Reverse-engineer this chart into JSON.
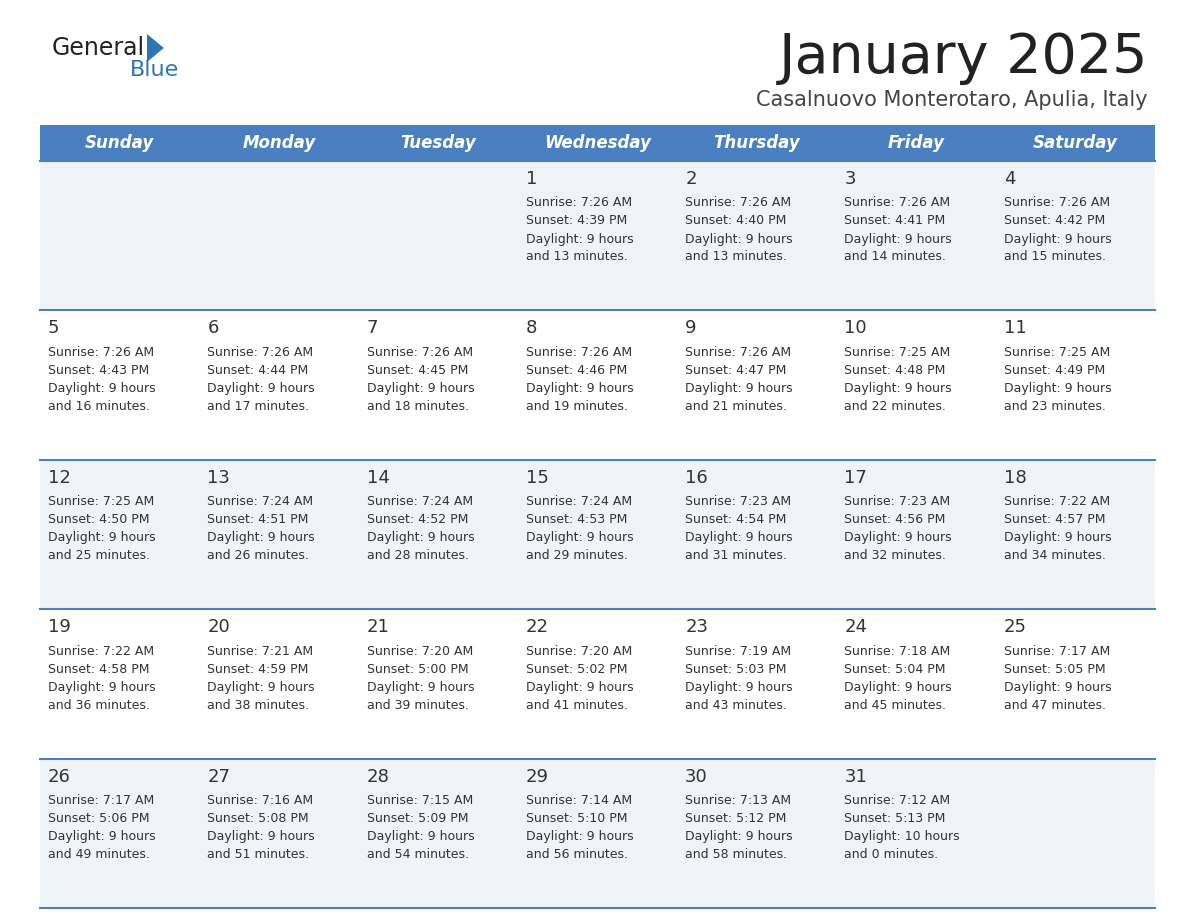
{
  "title": "January 2025",
  "subtitle": "Casalnuovo Monterotaro, Apulia, Italy",
  "days_of_week": [
    "Sunday",
    "Monday",
    "Tuesday",
    "Wednesday",
    "Thursday",
    "Friday",
    "Saturday"
  ],
  "header_bg": "#4a7fc1",
  "header_text": "#ffffff",
  "row_bg_light": "#f0f4f8",
  "row_bg_white": "#ffffff",
  "cell_text": "#333333",
  "title_color": "#222222",
  "subtitle_color": "#444444",
  "divider_color": "#4a7fc1",
  "logo_general_color": "#222222",
  "logo_blue_color": "#2e75b6",
  "calendar_data": [
    [
      {
        "day": "",
        "sunrise": "",
        "sunset": "",
        "daylight": ""
      },
      {
        "day": "",
        "sunrise": "",
        "sunset": "",
        "daylight": ""
      },
      {
        "day": "",
        "sunrise": "",
        "sunset": "",
        "daylight": ""
      },
      {
        "day": "1",
        "sunrise": "7:26 AM",
        "sunset": "4:39 PM",
        "daylight": "9 hours and 13 minutes."
      },
      {
        "day": "2",
        "sunrise": "7:26 AM",
        "sunset": "4:40 PM",
        "daylight": "9 hours and 13 minutes."
      },
      {
        "day": "3",
        "sunrise": "7:26 AM",
        "sunset": "4:41 PM",
        "daylight": "9 hours and 14 minutes."
      },
      {
        "day": "4",
        "sunrise": "7:26 AM",
        "sunset": "4:42 PM",
        "daylight": "9 hours and 15 minutes."
      }
    ],
    [
      {
        "day": "5",
        "sunrise": "7:26 AM",
        "sunset": "4:43 PM",
        "daylight": "9 hours and 16 minutes."
      },
      {
        "day": "6",
        "sunrise": "7:26 AM",
        "sunset": "4:44 PM",
        "daylight": "9 hours and 17 minutes."
      },
      {
        "day": "7",
        "sunrise": "7:26 AM",
        "sunset": "4:45 PM",
        "daylight": "9 hours and 18 minutes."
      },
      {
        "day": "8",
        "sunrise": "7:26 AM",
        "sunset": "4:46 PM",
        "daylight": "9 hours and 19 minutes."
      },
      {
        "day": "9",
        "sunrise": "7:26 AM",
        "sunset": "4:47 PM",
        "daylight": "9 hours and 21 minutes."
      },
      {
        "day": "10",
        "sunrise": "7:25 AM",
        "sunset": "4:48 PM",
        "daylight": "9 hours and 22 minutes."
      },
      {
        "day": "11",
        "sunrise": "7:25 AM",
        "sunset": "4:49 PM",
        "daylight": "9 hours and 23 minutes."
      }
    ],
    [
      {
        "day": "12",
        "sunrise": "7:25 AM",
        "sunset": "4:50 PM",
        "daylight": "9 hours and 25 minutes."
      },
      {
        "day": "13",
        "sunrise": "7:24 AM",
        "sunset": "4:51 PM",
        "daylight": "9 hours and 26 minutes."
      },
      {
        "day": "14",
        "sunrise": "7:24 AM",
        "sunset": "4:52 PM",
        "daylight": "9 hours and 28 minutes."
      },
      {
        "day": "15",
        "sunrise": "7:24 AM",
        "sunset": "4:53 PM",
        "daylight": "9 hours and 29 minutes."
      },
      {
        "day": "16",
        "sunrise": "7:23 AM",
        "sunset": "4:54 PM",
        "daylight": "9 hours and 31 minutes."
      },
      {
        "day": "17",
        "sunrise": "7:23 AM",
        "sunset": "4:56 PM",
        "daylight": "9 hours and 32 minutes."
      },
      {
        "day": "18",
        "sunrise": "7:22 AM",
        "sunset": "4:57 PM",
        "daylight": "9 hours and 34 minutes."
      }
    ],
    [
      {
        "day": "19",
        "sunrise": "7:22 AM",
        "sunset": "4:58 PM",
        "daylight": "9 hours and 36 minutes."
      },
      {
        "day": "20",
        "sunrise": "7:21 AM",
        "sunset": "4:59 PM",
        "daylight": "9 hours and 38 minutes."
      },
      {
        "day": "21",
        "sunrise": "7:20 AM",
        "sunset": "5:00 PM",
        "daylight": "9 hours and 39 minutes."
      },
      {
        "day": "22",
        "sunrise": "7:20 AM",
        "sunset": "5:02 PM",
        "daylight": "9 hours and 41 minutes."
      },
      {
        "day": "23",
        "sunrise": "7:19 AM",
        "sunset": "5:03 PM",
        "daylight": "9 hours and 43 minutes."
      },
      {
        "day": "24",
        "sunrise": "7:18 AM",
        "sunset": "5:04 PM",
        "daylight": "9 hours and 45 minutes."
      },
      {
        "day": "25",
        "sunrise": "7:17 AM",
        "sunset": "5:05 PM",
        "daylight": "9 hours and 47 minutes."
      }
    ],
    [
      {
        "day": "26",
        "sunrise": "7:17 AM",
        "sunset": "5:06 PM",
        "daylight": "9 hours and 49 minutes."
      },
      {
        "day": "27",
        "sunrise": "7:16 AM",
        "sunset": "5:08 PM",
        "daylight": "9 hours and 51 minutes."
      },
      {
        "day": "28",
        "sunrise": "7:15 AM",
        "sunset": "5:09 PM",
        "daylight": "9 hours and 54 minutes."
      },
      {
        "day": "29",
        "sunrise": "7:14 AM",
        "sunset": "5:10 PM",
        "daylight": "9 hours and 56 minutes."
      },
      {
        "day": "30",
        "sunrise": "7:13 AM",
        "sunset": "5:12 PM",
        "daylight": "9 hours and 58 minutes."
      },
      {
        "day": "31",
        "sunrise": "7:12 AM",
        "sunset": "5:13 PM",
        "daylight": "10 hours and 0 minutes."
      },
      {
        "day": "",
        "sunrise": "",
        "sunset": "",
        "daylight": ""
      }
    ]
  ]
}
